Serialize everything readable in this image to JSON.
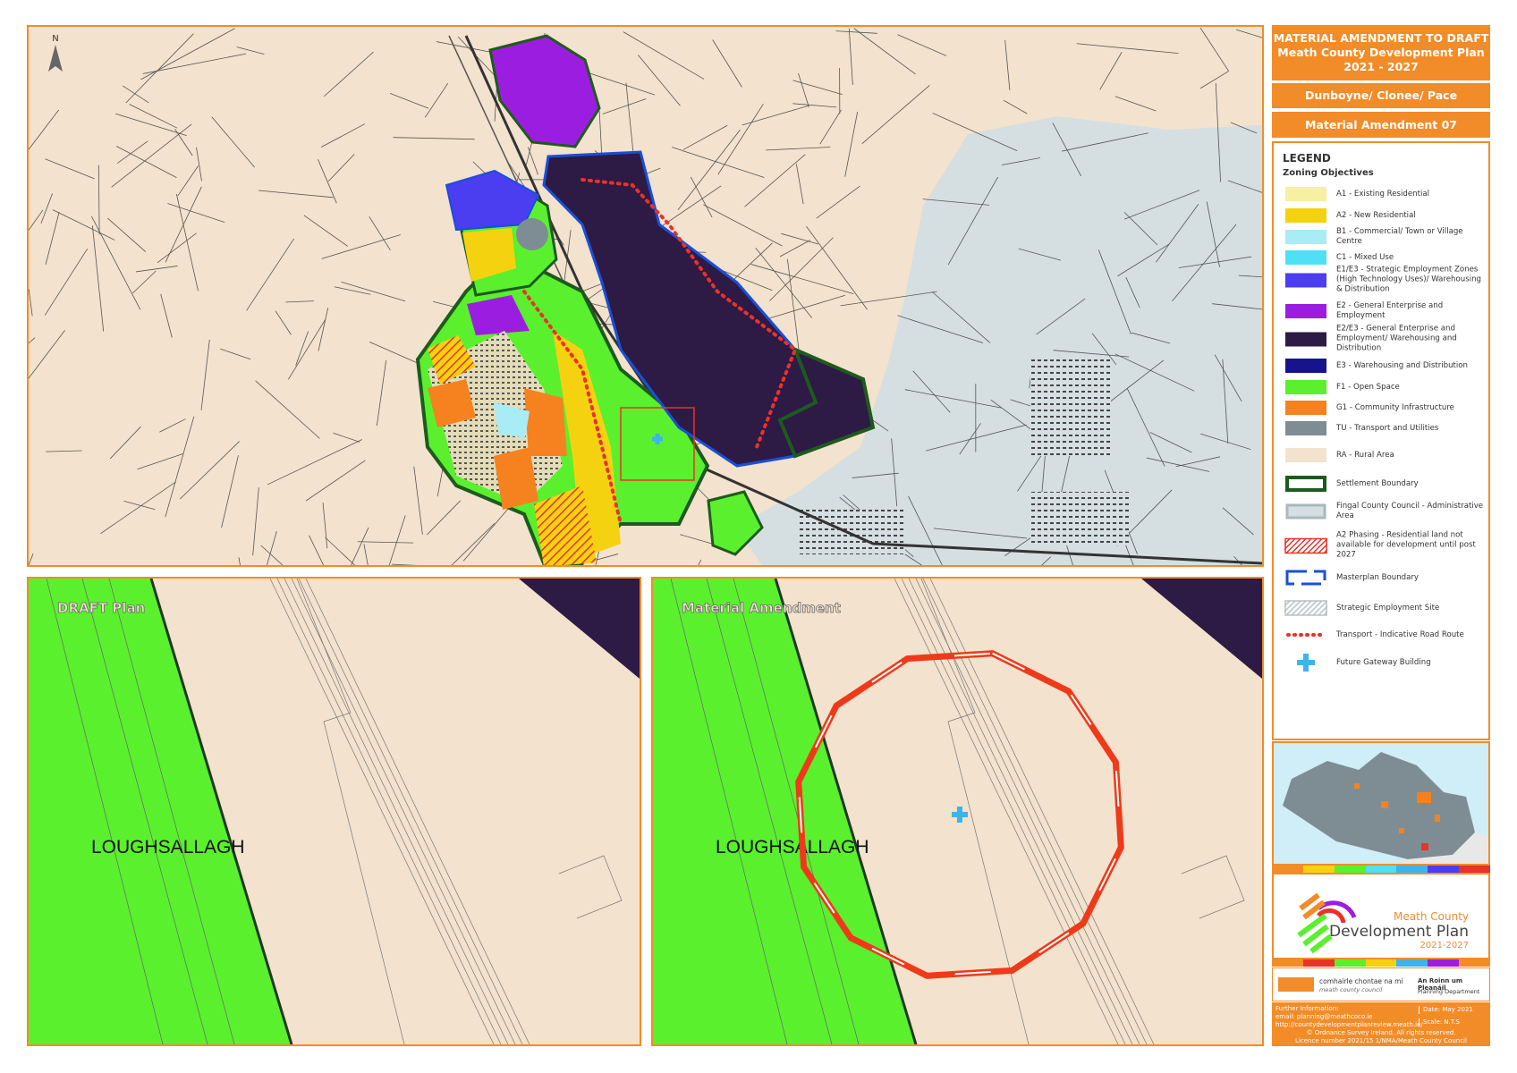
{
  "header": {
    "lines": [
      "MATERIAL AMENDMENT TO DRAFT",
      "Meath County Development Plan",
      "2021 - 2027"
    ],
    "area": "Dunboyne/ Clonee/ Pace",
    "amendment": "Material Amendment 07"
  },
  "legend": {
    "title": "LEGEND",
    "subtitle": "Zoning Objectives",
    "items": [
      {
        "label": "A1 - Existing Residential",
        "color": "#f7f0a0",
        "kind": "fill"
      },
      {
        "label": "A2 - New Residential",
        "color": "#f5d210",
        "kind": "fill"
      },
      {
        "label": "B1 - Commercial/ Town or Village Centre",
        "color": "#a8ecf5",
        "kind": "fill"
      },
      {
        "label": "C1 - Mixed Use",
        "color": "#4ee0f5",
        "kind": "fill"
      },
      {
        "label": "E1/E3 - Strategic Employment Zones (High Technology Uses)/ Warehousing & Distribution",
        "color": "#4a3ef0",
        "kind": "fill"
      },
      {
        "label": "E2 - General Enterprise and Employment",
        "color": "#9b1ee0",
        "kind": "fill"
      },
      {
        "label": "E2/E3 - General Enterprise and Employment/ Warehousing and Distribution",
        "color": "#2d1a45",
        "kind": "fill"
      },
      {
        "label": "E3 - Warehousing and Distribution",
        "color": "#16148c",
        "kind": "fill"
      },
      {
        "label": "F1 - Open Space",
        "color": "#5af02e",
        "kind": "fill"
      },
      {
        "label": "G1 - Community Infrastructure",
        "color": "#f5821e",
        "kind": "fill"
      },
      {
        "label": "TU - Transport and Utilities",
        "color": "#7e8d93",
        "kind": "fill"
      },
      {
        "label": "RA - Rural Area",
        "color": "#f3e2cd",
        "kind": "fill"
      },
      {
        "label": "Settlement Boundary",
        "color": "#1e5a1e",
        "kind": "outline"
      },
      {
        "label": "Fingal County Council - Administrative Area",
        "color": "#d5dfe1",
        "kind": "area"
      },
      {
        "label": "A2 Phasing - Residential land not available for development until post 2027",
        "color": "#e8322a",
        "kind": "hatch"
      },
      {
        "label": "Masterplan Boundary",
        "color": "#1a4fd6",
        "kind": "dashed"
      },
      {
        "label": "Strategic Employment Site",
        "color": "#b8c0c4",
        "kind": "hatch"
      },
      {
        "label": "Transport - Indicative Road Route",
        "color": "#e8322a",
        "kind": "dotted"
      },
      {
        "label": "Future Gateway Building",
        "color": "#3cb4ee",
        "kind": "cross"
      }
    ]
  },
  "panels": [
    {
      "label": "DRAFT Plan"
    },
    {
      "label": "Material Amendment"
    }
  ],
  "place_label": "LOUGHSALLAGH",
  "logo": {
    "line1": "Meath County",
    "line2": "Development Plan",
    "line3": "2021-2027"
  },
  "footer": {
    "council_irish": "comhairle chontae na mí",
    "council_english": "meath county council",
    "department_irish": "An Roinn um Pleanáil",
    "department_english": "Planning Department",
    "info": [
      "Further Information:",
      "email: planning@meathcoco.ie",
      "http://countydevelopmentplanreview.meath.ie/"
    ],
    "date": "Date: May 2021",
    "scale": "Scale: N.T.S",
    "copyright": [
      "© Ordnance Survey Ireland. All rights reserved.",
      "Licence number 2021/15 1/NMA/Meath County Council"
    ]
  }
}
